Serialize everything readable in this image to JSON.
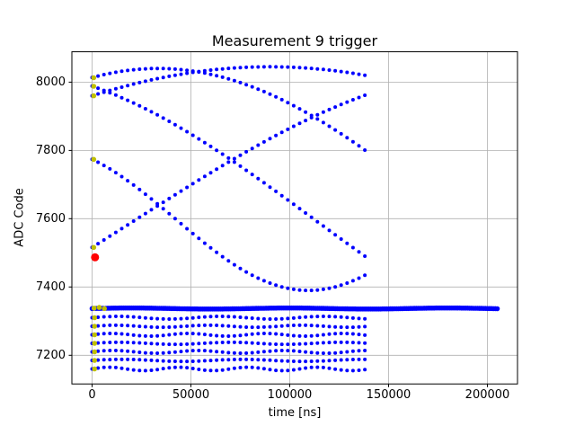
{
  "chart_data": {
    "type": "scatter",
    "title": "Measurement 9 trigger",
    "xlabel": "time [ns]",
    "ylabel": "ADC Code",
    "x_view": [
      -10250,
      215250
    ],
    "y_view": [
      7116,
      8089
    ],
    "x_ticks": [
      0,
      50000,
      100000,
      150000,
      200000
    ],
    "y_ticks": [
      7200,
      7400,
      7600,
      7800,
      8000
    ],
    "grid": true,
    "legend": "none",
    "dot_color": "#0000ff",
    "trigger_color": "#bfbf00",
    "marker_color": "#ff0000",
    "grid_color": "#b0b0b0",
    "spine_color": "#000000",
    "series": [
      {
        "name": "sine-a",
        "shape": "sine",
        "offset": 7600,
        "amplitude": 440,
        "period_ns": 600000,
        "phase_deg": 70,
        "x_start": 0,
        "x_end": 140000,
        "step_ns": 3000
      },
      {
        "name": "sine-b",
        "shape": "sine",
        "offset": 7600,
        "amplitude": 445,
        "period_ns": 900000,
        "phase_deg": 54,
        "x_start": 0,
        "x_end": 140000,
        "step_ns": 3000
      },
      {
        "name": "sine-c",
        "shape": "sine",
        "offset": 7600,
        "amplitude": 210,
        "period_ns": 270000,
        "phase_deg": 124,
        "x_start": 0,
        "x_end": 140000,
        "step_ns": 3000
      },
      {
        "name": "sine-d",
        "shape": "sine",
        "offset": 7600,
        "amplitude": 440,
        "period_ns": 750000,
        "phase_deg": -11,
        "x_start": 0,
        "x_end": 140000,
        "step_ns": 3000
      },
      {
        "name": "sine-e",
        "shape": "sine",
        "offset": 7600,
        "amplitude": 440,
        "period_ns": 650000,
        "phase_deg": 118,
        "x_start": 0,
        "x_end": 140000,
        "step_ns": 3000
      },
      {
        "name": "level-7310",
        "shape": "sine",
        "offset": 7310,
        "amplitude": 4,
        "period_ns": 52000,
        "phase_deg": 0,
        "x_start": 0,
        "x_end": 140000,
        "step_ns": 3000
      },
      {
        "name": "level-7285",
        "shape": "sine",
        "offset": 7285,
        "amplitude": 3,
        "period_ns": 47000,
        "phase_deg": 0,
        "x_start": 0,
        "x_end": 140000,
        "step_ns": 3000
      },
      {
        "name": "level-7260",
        "shape": "sine",
        "offset": 7260,
        "amplitude": 4,
        "period_ns": 39000,
        "phase_deg": 0,
        "x_start": 0,
        "x_end": 140000,
        "step_ns": 3000
      },
      {
        "name": "level-7235",
        "shape": "sine",
        "offset": 7235,
        "amplitude": 3,
        "period_ns": 56000,
        "phase_deg": 0,
        "x_start": 0,
        "x_end": 140000,
        "step_ns": 3000
      },
      {
        "name": "level-7210",
        "shape": "sine",
        "offset": 7210,
        "amplitude": 4,
        "period_ns": 43000,
        "phase_deg": 0,
        "x_start": 0,
        "x_end": 140000,
        "step_ns": 3000
      },
      {
        "name": "level-7185",
        "shape": "sine",
        "offset": 7185,
        "amplitude": 3,
        "period_ns": 61000,
        "phase_deg": 0,
        "x_start": 0,
        "x_end": 140000,
        "step_ns": 3000
      },
      {
        "name": "level-7160",
        "shape": "sine",
        "offset": 7160,
        "amplitude": 5,
        "period_ns": 35000,
        "phase_deg": 0,
        "x_start": 0,
        "x_end": 140000,
        "step_ns": 3000
      },
      {
        "name": "baseline",
        "shape": "sine",
        "offset": 7337,
        "amplitude": 1.5,
        "period_ns": 80000,
        "phase_deg": 0,
        "x_start": 0,
        "x_end": 205000,
        "step_ns": 1000,
        "radius": 2.8
      }
    ],
    "trigger_points": [
      {
        "x": 800,
        "y": 8013
      },
      {
        "x": 800,
        "y": 7988
      },
      {
        "x": 800,
        "y": 7960
      },
      {
        "x": 800,
        "y": 7774
      },
      {
        "x": 800,
        "y": 7516
      },
      {
        "x": 1000,
        "y": 7338
      },
      {
        "x": 3600,
        "y": 7340
      },
      {
        "x": 6200,
        "y": 7337
      },
      {
        "x": 1200,
        "y": 7310
      },
      {
        "x": 1200,
        "y": 7285
      },
      {
        "x": 1200,
        "y": 7260
      },
      {
        "x": 1200,
        "y": 7235
      },
      {
        "x": 1200,
        "y": 7210
      },
      {
        "x": 1200,
        "y": 7185
      },
      {
        "x": 1200,
        "y": 7160
      }
    ],
    "trigger_marker": {
      "x": 1500,
      "y": 7487,
      "radius": 4.5
    }
  }
}
